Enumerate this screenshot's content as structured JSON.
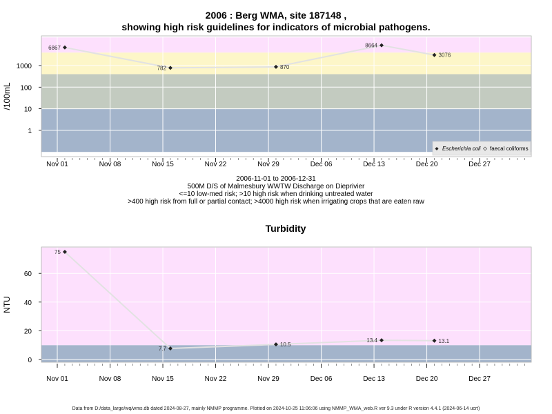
{
  "header": {
    "title_line1": "2006 : Berg WMA, site 187148 ,",
    "title_line2": "showing high risk guidelines for indicators of microbial pathogens."
  },
  "caption": {
    "line1": "2006-11-01 to 2006-12-31",
    "line2": "500M D/S of Malmesbury WWTW Discharge on Dieprivier",
    "line3": "<=10 low-med risk; >10 high risk when drinking untreated water",
    "line4": ">400 high risk from full or partial contact; >4000 high risk when irrigating crops that are eaten raw"
  },
  "footer": {
    "text": "Data from D:/data_large/wq/wms.db dated 2024-08-27, mainly NMMP programme. Plotted on 2024-10-25 11:06:06 using NMMP_WMA_web.R ver 9.3 under R version 4.4.1 (2024-06-14 ucrt)"
  },
  "colors": {
    "band_pink": "#fde0fd",
    "band_yellow": "#fdf6c8",
    "band_grey": "#c3cbc0",
    "band_blue": "#a3b4cb",
    "line": "#e2e2e2",
    "grid": "#ffffff"
  },
  "chart_data": [
    {
      "type": "line",
      "title": "",
      "ylabel": "/100mL",
      "yscale": "log",
      "x_ticks": [
        "Nov 01",
        "Nov 08",
        "Nov 15",
        "Nov 22",
        "Nov 29",
        "Dec 06",
        "Dec 13",
        "Dec 20",
        "Dec 27"
      ],
      "y_ticks": [
        "1",
        "10",
        "100",
        "1000"
      ],
      "bands": [
        {
          "from": 0.1,
          "to": 10,
          "color": "#a3b4cb"
        },
        {
          "from": 10,
          "to": 400,
          "color": "#c3cbc0"
        },
        {
          "from": 400,
          "to": 4000,
          "color": "#fdf6c8"
        },
        {
          "from": 4000,
          "to": 20000,
          "color": "#fde0fd"
        }
      ],
      "series": [
        {
          "name": "Escherichia coli",
          "x": [
            "2006-11-02",
            "2006-11-16",
            "2006-11-30",
            "2006-12-14",
            "2006-12-21"
          ],
          "y": [
            6867,
            782,
            870,
            8664,
            3076
          ],
          "labels": [
            "6867",
            "782",
            "870",
            "8664",
            "3076"
          ]
        }
      ],
      "legend": {
        "position": "bottom-right",
        "entries": [
          "Escherichia coli",
          "faecal coliforms"
        ]
      }
    },
    {
      "type": "line",
      "title": "Turbidity",
      "ylabel": "NTU",
      "x_ticks": [
        "Nov 01",
        "Nov 08",
        "Nov 15",
        "Nov 22",
        "Nov 29",
        "Dec 06",
        "Dec 13",
        "Dec 20",
        "Dec 27"
      ],
      "y_ticks": [
        "0",
        "20",
        "40",
        "60"
      ],
      "bands": [
        {
          "from": -2,
          "to": 10,
          "color": "#a3b4cb"
        },
        {
          "from": 10,
          "to": 78,
          "color": "#fde0fd"
        }
      ],
      "series": [
        {
          "x": [
            "2006-11-02",
            "2006-11-16",
            "2006-11-30",
            "2006-12-14",
            "2006-12-21"
          ],
          "y": [
            75,
            7.7,
            10.5,
            13.4,
            13.1
          ],
          "labels": [
            "75",
            "7.7",
            "10.5",
            "13.4",
            "13.1"
          ]
        }
      ]
    }
  ]
}
